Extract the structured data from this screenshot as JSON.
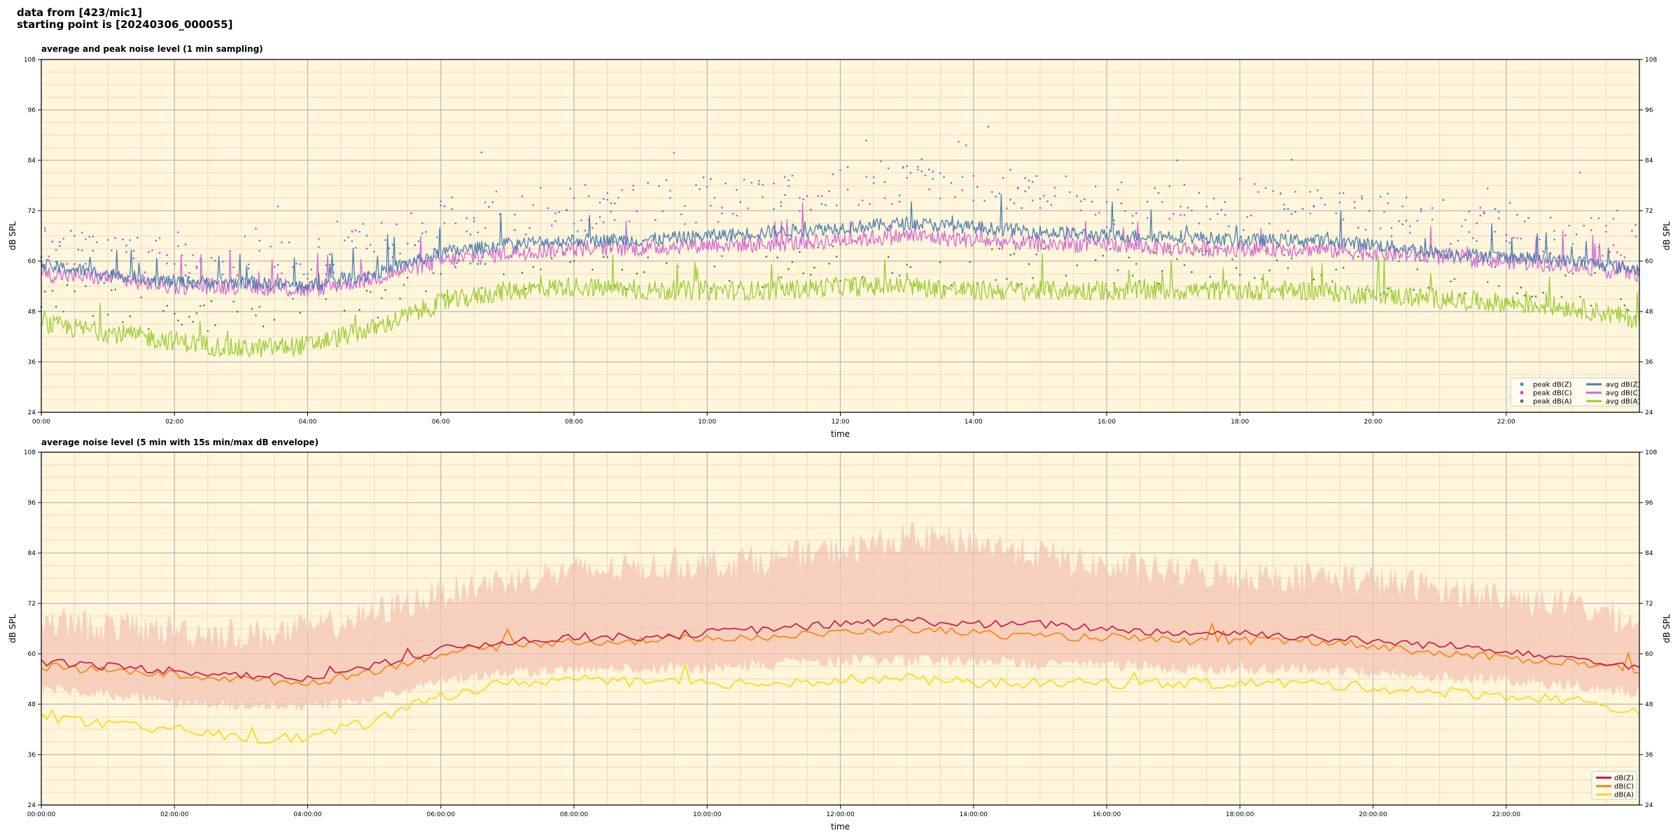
{
  "header": {
    "line1": "data from [423/mic1]",
    "line2": "starting point is [20240306_000055]"
  },
  "colors": {
    "plot_bg": "#fff6dc",
    "grid_major": "#b8b8b8",
    "grid_minor": "#e6dcc0",
    "peak_z": "#3a8fd8",
    "peak_c": "#e23be2",
    "peak_a": "#3c8a3c",
    "avg_z": "#4a7fb0",
    "avg_c": "#d468d4",
    "avg_a": "#9acd32",
    "db_z": "#cc1040",
    "db_c": "#ff8000",
    "db_a": "#ffd700",
    "envelope": "#f4c2b0"
  },
  "chart_data": [
    {
      "type": "line",
      "title": "average and peak noise level (1 min sampling)",
      "xlabel": "time",
      "ylabel": "dB SPL",
      "x_ticks": [
        "00:00",
        "02:00",
        "04:00",
        "06:00",
        "08:00",
        "10:00",
        "12:00",
        "14:00",
        "16:00",
        "18:00",
        "20:00",
        "22:00"
      ],
      "y_ticks": [
        "24",
        "36",
        "48",
        "60",
        "72",
        "84",
        "96",
        "108"
      ],
      "ylim": [
        24,
        108
      ],
      "xlim_hours": [
        0,
        24
      ],
      "grid": true,
      "legend_placement": "lower-right",
      "legend": [
        "peak dB(Z)",
        "peak dB(C)",
        "peak dB(A)",
        "avg dB(Z)",
        "avg dB(C)",
        "avg dB(A)"
      ],
      "x_hours": [
        0,
        1,
        2,
        3,
        4,
        5,
        6,
        7,
        8,
        9,
        10,
        11,
        12,
        13,
        14,
        15,
        16,
        17,
        18,
        19,
        20,
        21,
        22,
        23,
        24
      ],
      "series": [
        {
          "name": "avg dB(Z)",
          "values": [
            59,
            57,
            55,
            55,
            54,
            57,
            62,
            64,
            65,
            65,
            66,
            67,
            68,
            69,
            68,
            67,
            66,
            66,
            65,
            65,
            64,
            62,
            61,
            60,
            58
          ]
        },
        {
          "name": "avg dB(C)",
          "values": [
            57,
            56,
            54,
            54,
            53,
            56,
            60,
            62,
            63,
            63,
            64,
            64,
            65,
            66,
            65,
            64,
            64,
            63,
            63,
            63,
            62,
            61,
            60,
            59,
            57
          ]
        },
        {
          "name": "avg dB(A)",
          "values": [
            45,
            43,
            41,
            39,
            40,
            44,
            50,
            53,
            54,
            53,
            53,
            53,
            54,
            54,
            53,
            53,
            53,
            53,
            53,
            53,
            52,
            51,
            50,
            49,
            46
          ]
        },
        {
          "name": "peak dB(Z)",
          "values": [
            63,
            62,
            61,
            61,
            61,
            66,
            70,
            72,
            73,
            74,
            75,
            76,
            78,
            80,
            79,
            76,
            74,
            74,
            73,
            73,
            72,
            70,
            69,
            68,
            64
          ]
        },
        {
          "name": "peak dB(C)",
          "values": [
            62,
            61,
            60,
            59,
            60,
            64,
            69,
            71,
            72,
            73,
            74,
            75,
            77,
            79,
            78,
            75,
            73,
            73,
            72,
            72,
            71,
            69,
            68,
            66,
            63
          ]
        },
        {
          "name": "peak dB(A)",
          "values": [
            51,
            50,
            48,
            47,
            48,
            51,
            56,
            57,
            58,
            58,
            58,
            58,
            59,
            59,
            59,
            58,
            58,
            58,
            58,
            58,
            57,
            56,
            55,
            54,
            51
          ]
        }
      ]
    },
    {
      "type": "line",
      "title": "average noise level (5 min with 15s min/max dB envelope)",
      "xlabel": "time",
      "ylabel": "dB SPL",
      "x_ticks": [
        "00:00:00",
        "02:00:00",
        "04:00:00",
        "06:00:00",
        "08:00:00",
        "10:00:00",
        "12:00:00",
        "14:00:00",
        "16:00:00",
        "18:00:00",
        "20:00:00",
        "22:00:00"
      ],
      "y_ticks": [
        "24",
        "36",
        "48",
        "60",
        "72",
        "84",
        "96",
        "108"
      ],
      "ylim": [
        24,
        108
      ],
      "xlim_hours": [
        0,
        24
      ],
      "grid": true,
      "legend_placement": "lower-right",
      "legend": [
        "dB(Z)",
        "dB(C)",
        "dB(A)"
      ],
      "x_hours": [
        0,
        1,
        2,
        3,
        4,
        5,
        6,
        7,
        8,
        9,
        10,
        11,
        12,
        13,
        14,
        15,
        16,
        17,
        18,
        19,
        20,
        21,
        22,
        23,
        24
      ],
      "series": [
        {
          "name": "dB(Z)",
          "values": [
            58,
            57,
            56,
            55,
            54,
            57,
            61,
            63,
            64,
            64,
            65,
            66,
            67,
            68,
            67,
            67,
            66,
            65,
            65,
            64,
            63,
            62,
            61,
            59,
            57
          ]
        },
        {
          "name": "dB(C)",
          "values": [
            57,
            56,
            55,
            54,
            53,
            56,
            60,
            62,
            63,
            63,
            64,
            64,
            65,
            66,
            65,
            64,
            64,
            63,
            63,
            63,
            62,
            60,
            59,
            58,
            56
          ]
        },
        {
          "name": "dB(A)",
          "values": [
            45,
            43,
            42,
            40,
            40,
            44,
            50,
            53,
            54,
            53,
            53,
            53,
            54,
            54,
            53,
            53,
            53,
            53,
            53,
            53,
            52,
            51,
            50,
            49,
            46
          ]
        },
        {
          "name": "envelope max",
          "values": [
            66,
            65,
            64,
            63,
            64,
            68,
            73,
            76,
            78,
            79,
            80,
            81,
            83,
            86,
            85,
            82,
            79,
            78,
            77,
            77,
            76,
            74,
            72,
            70,
            66
          ]
        },
        {
          "name": "envelope min",
          "values": [
            53,
            52,
            50,
            49,
            49,
            51,
            55,
            57,
            58,
            58,
            58,
            59,
            60,
            60,
            60,
            59,
            59,
            58,
            58,
            58,
            57,
            56,
            55,
            54,
            52
          ]
        }
      ]
    }
  ]
}
